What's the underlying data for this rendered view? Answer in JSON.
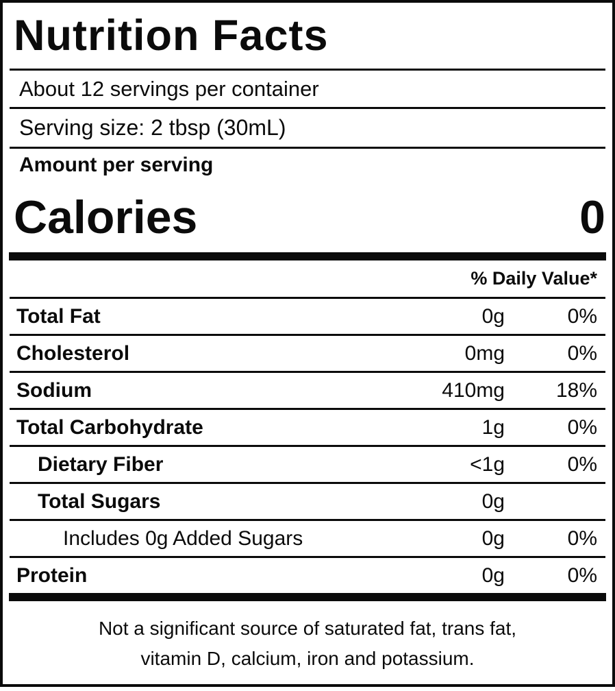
{
  "title": "Nutrition Facts",
  "servings_line": "About 12 servings per container",
  "serving_size_line": "Serving size: 2 tbsp (30mL)",
  "amount_per_serving": "Amount per serving",
  "calories": {
    "label": "Calories",
    "value": "0"
  },
  "daily_value_header": "% Daily Value*",
  "rows": [
    {
      "label": "Total Fat",
      "amount": "0g",
      "dv": "0%",
      "indent": 0
    },
    {
      "label": "Cholesterol",
      "amount": "0mg",
      "dv": "0%",
      "indent": 0
    },
    {
      "label": "Sodium",
      "amount": "410mg",
      "dv": "18%",
      "indent": 0
    },
    {
      "label": "Total Carbohydrate",
      "amount": "1g",
      "dv": "0%",
      "indent": 0
    },
    {
      "label": "Dietary Fiber",
      "amount": "<1g",
      "dv": "0%",
      "indent": 1
    },
    {
      "label": "Total Sugars",
      "amount": "0g",
      "dv": "",
      "indent": 1
    },
    {
      "label": "Includes 0g Added Sugars",
      "amount": "0g",
      "dv": "0%",
      "indent": 2
    },
    {
      "label": "Protein",
      "amount": "0g",
      "dv": "0%",
      "indent": 0
    }
  ],
  "footnote": {
    "line1": "Not a significant source of saturated fat, trans fat,",
    "line2": "vitamin D, calcium, iron and potassium."
  },
  "colors": {
    "text": "#0b0b0b",
    "background": "#ffffff"
  }
}
